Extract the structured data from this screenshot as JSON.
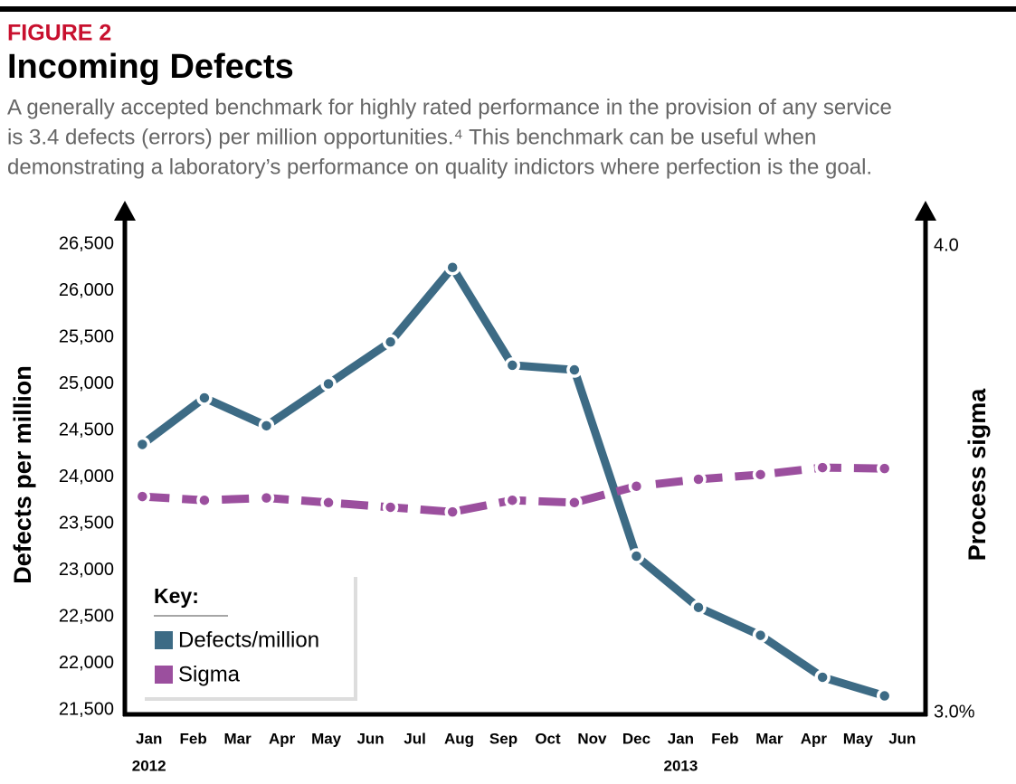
{
  "chart_data": {
    "type": "line",
    "figure_label": "FIGURE 2",
    "title": "Incoming Defects",
    "subtitle": [
      "A generally accepted benchmark for highly rated performance in the provision of any service",
      "is 3.4 defects (errors) per million opportunities.⁴ This benchmark can be useful when",
      "demonstrating a laboratory’s performance on quality indictors where perfection is the goal."
    ],
    "ylabel": "Defects per million",
    "y2label": "Process sigma",
    "x": [
      -0.15,
      1.25,
      2.65,
      4.05,
      5.45,
      6.85,
      8.2,
      9.6,
      11.0,
      12.4,
      13.8,
      15.2,
      16.6
    ],
    "xlim": [
      -0.3,
      17.3
    ],
    "xticks": [
      {
        "value": 0,
        "label": "Jan"
      },
      {
        "value": 1,
        "label": "Feb"
      },
      {
        "value": 2,
        "label": "Mar"
      },
      {
        "value": 3,
        "label": "Apr"
      },
      {
        "value": 4,
        "label": "May"
      },
      {
        "value": 5,
        "label": "Jun"
      },
      {
        "value": 6,
        "label": "Jul"
      },
      {
        "value": 7,
        "label": "Aug"
      },
      {
        "value": 8,
        "label": "Sep"
      },
      {
        "value": 9,
        "label": "Oct"
      },
      {
        "value": 10,
        "label": "Nov"
      },
      {
        "value": 11,
        "label": "Dec"
      },
      {
        "value": 12,
        "label": "Jan"
      },
      {
        "value": 13,
        "label": "Feb"
      },
      {
        "value": 14,
        "label": "Mar"
      },
      {
        "value": 15,
        "label": "Apr"
      },
      {
        "value": 16,
        "label": "May"
      },
      {
        "value": 17,
        "label": "Jun"
      }
    ],
    "annotations": [
      {
        "text": "2012",
        "x": 0
      },
      {
        "text": "2013",
        "x": 12
      }
    ],
    "ylim": [
      21500,
      26500
    ],
    "yticks": [
      {
        "value": 21500,
        "label": "21,500"
      },
      {
        "value": 22000,
        "label": "22,000"
      },
      {
        "value": 22500,
        "label": "22,500"
      },
      {
        "value": 23000,
        "label": "23,000"
      },
      {
        "value": 23500,
        "label": "23,500"
      },
      {
        "value": 24000,
        "label": "24,000"
      },
      {
        "value": 24500,
        "label": "24,500"
      },
      {
        "value": 25000,
        "label": "25,000"
      },
      {
        "value": 25500,
        "label": "25,500"
      },
      {
        "value": 26000,
        "label": "26,000"
      },
      {
        "value": 26500,
        "label": "26,500"
      }
    ],
    "y2lim": [
      3.0,
      4.0
    ],
    "y2ticks": [
      {
        "value": 3.0,
        "label": "3.0%"
      },
      {
        "value": 4.0,
        "label": "4.0"
      }
    ],
    "legend_title": "Key:",
    "legend": "bottom-left",
    "series": [
      {
        "name": "Defects/million",
        "color": "#3d6b85",
        "dashed": false,
        "values": [
          24350,
          24850,
          24550,
          25000,
          25450,
          26250,
          25200,
          25150,
          23150,
          22600,
          22300,
          21850,
          21650
        ]
      },
      {
        "name": "Sigma",
        "color": "#9b4f9e",
        "dashed": true,
        "axis": "y2",
        "values": [
          3.463,
          3.455,
          3.46,
          3.45,
          3.44,
          3.43,
          3.455,
          3.45,
          3.485,
          3.5,
          3.51,
          3.525,
          3.523
        ]
      }
    ]
  }
}
